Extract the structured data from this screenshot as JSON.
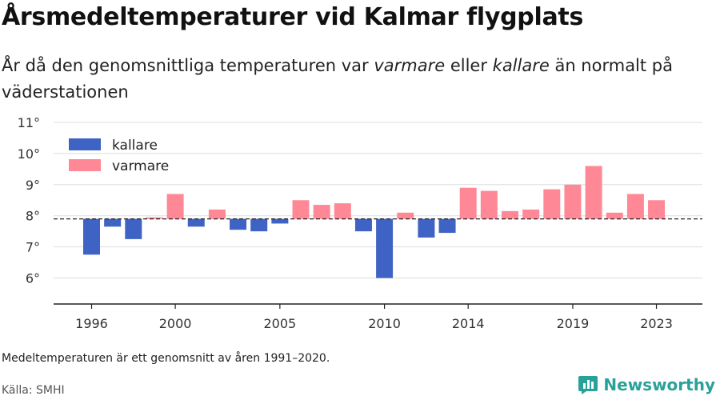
{
  "header": {
    "title": "Årsmedeltemperaturer vid Kalmar flygplats",
    "subtitle_parts": [
      "År då den genomsnittliga temperaturen var ",
      "varmare",
      " eller ",
      "kallare",
      " än normalt på väderstationen"
    ]
  },
  "footer": {
    "note": "Medeltemperaturen är ett genomsnitt av åren 1991–2020.",
    "source": "Källa: SMHI",
    "brand": "Newsworthy"
  },
  "colors": {
    "kallare": "#3f63c4",
    "varmare": "#ff8896",
    "brand": "#2aa198"
  },
  "chart_data": {
    "type": "bar",
    "title": "Årsmedeltemperaturer vid Kalmar flygplats",
    "baseline": 7.9,
    "ylim": [
      5,
      11
    ],
    "y_ticks": [
      6,
      7,
      8,
      9,
      10,
      11
    ],
    "y_tick_labels": [
      "6°",
      "7°",
      "8°",
      "9°",
      "10°",
      "11°"
    ],
    "x_tick_years": [
      1996,
      2000,
      2005,
      2010,
      2014,
      2019,
      2023
    ],
    "x_tick_labels": [
      "1996",
      "2000",
      "2005",
      "2010",
      "2014",
      "2019",
      "2023"
    ],
    "legend": [
      {
        "key": "kallare",
        "label": "kallare"
      },
      {
        "key": "varmare",
        "label": "varmare"
      }
    ],
    "legend_position": "top-left",
    "grid": true,
    "categories": [
      1996,
      1997,
      1998,
      1999,
      2000,
      2001,
      2002,
      2003,
      2004,
      2005,
      2006,
      2007,
      2008,
      2009,
      2010,
      2011,
      2012,
      2013,
      2014,
      2015,
      2016,
      2017,
      2018,
      2019,
      2020,
      2021,
      2022,
      2023
    ],
    "values": [
      6.75,
      7.65,
      7.25,
      7.95,
      8.7,
      7.65,
      8.2,
      7.55,
      7.5,
      7.75,
      8.5,
      8.35,
      8.4,
      7.5,
      6.0,
      8.1,
      7.3,
      7.45,
      8.9,
      8.8,
      8.15,
      8.2,
      8.85,
      9.0,
      9.6,
      8.1,
      8.7,
      8.5
    ]
  }
}
